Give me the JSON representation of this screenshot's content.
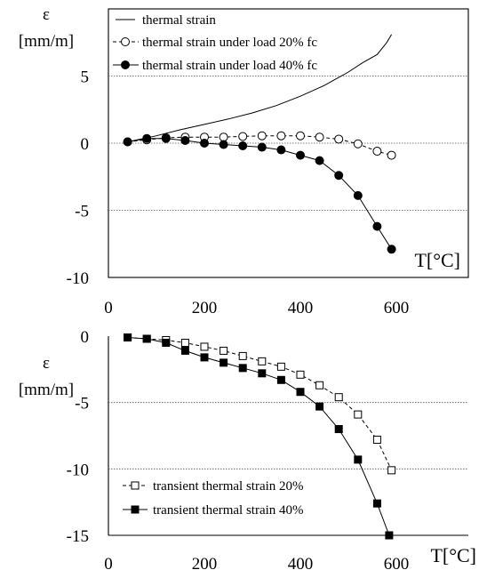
{
  "chart_data": [
    {
      "type": "line",
      "ylabel": "ε",
      "ylabel_unit": "[mm/m]",
      "xlabel": "T[°C]",
      "xlim": [
        0,
        750
      ],
      "ylim": [
        -10,
        10
      ],
      "x_ticks": [
        "0",
        "200",
        "400",
        "600"
      ],
      "y_ticks": [
        "5",
        "0",
        "-5",
        "-10"
      ],
      "gridlines_y": [
        5,
        0,
        -5
      ],
      "legend_position": "top-left",
      "series": [
        {
          "name": "thermal strain",
          "style": "solid-line",
          "x": [
            40,
            100,
            150,
            200,
            250,
            300,
            350,
            400,
            450,
            500,
            530,
            560,
            580,
            590
          ],
          "y": [
            0.1,
            0.55,
            1.0,
            1.4,
            1.8,
            2.25,
            2.8,
            3.5,
            4.3,
            5.3,
            6.0,
            6.6,
            7.5,
            8.1
          ]
        },
        {
          "name": "thermal strain under load 20% fc",
          "style": "dashed-line-open-circle",
          "x": [
            40,
            80,
            120,
            160,
            200,
            240,
            280,
            320,
            360,
            400,
            440,
            480,
            520,
            560,
            590
          ],
          "y": [
            0.1,
            0.25,
            0.4,
            0.45,
            0.45,
            0.45,
            0.5,
            0.55,
            0.55,
            0.55,
            0.45,
            0.3,
            -0.05,
            -0.6,
            -0.9
          ]
        },
        {
          "name": "thermal strain under load 40% fc",
          "style": "solid-line-filled-circle",
          "x": [
            40,
            80,
            120,
            160,
            200,
            240,
            280,
            320,
            360,
            400,
            440,
            480,
            520,
            560,
            590
          ],
          "y": [
            0.1,
            0.35,
            0.35,
            0.2,
            0.0,
            -0.1,
            -0.2,
            -0.3,
            -0.5,
            -0.9,
            -1.3,
            -2.4,
            -3.9,
            -6.2,
            -7.9
          ]
        }
      ]
    },
    {
      "type": "line",
      "ylabel": "ε",
      "ylabel_unit": "[mm/m]",
      "xlabel": "T[°C]",
      "xlim": [
        0,
        750
      ],
      "ylim": [
        -15,
        0
      ],
      "x_ticks": [
        "0",
        "200",
        "400",
        "600"
      ],
      "y_ticks": [
        "0",
        "-5",
        "-10",
        "-15"
      ],
      "gridlines_y": [
        -5,
        -10
      ],
      "legend_position": "bottom-left",
      "series": [
        {
          "name": "transient thermal strain 20%",
          "style": "dashed-line-open-square",
          "x": [
            40,
            80,
            120,
            160,
            200,
            240,
            280,
            320,
            360,
            400,
            440,
            480,
            520,
            560,
            590
          ],
          "y": [
            -0.1,
            -0.2,
            -0.3,
            -0.5,
            -0.8,
            -1.1,
            -1.5,
            -1.9,
            -2.3,
            -2.9,
            -3.7,
            -4.6,
            -5.9,
            -7.8,
            -10.1
          ]
        },
        {
          "name": "transient thermal strain 40%",
          "style": "solid-line-filled-square",
          "x": [
            40,
            80,
            120,
            160,
            200,
            240,
            280,
            320,
            360,
            400,
            440,
            480,
            520,
            560,
            585
          ],
          "y": [
            -0.1,
            -0.2,
            -0.5,
            -1.1,
            -1.6,
            -2.0,
            -2.4,
            -2.8,
            -3.3,
            -4.2,
            -5.3,
            -7.0,
            -9.3,
            -12.6,
            -15.0
          ]
        }
      ]
    }
  ]
}
